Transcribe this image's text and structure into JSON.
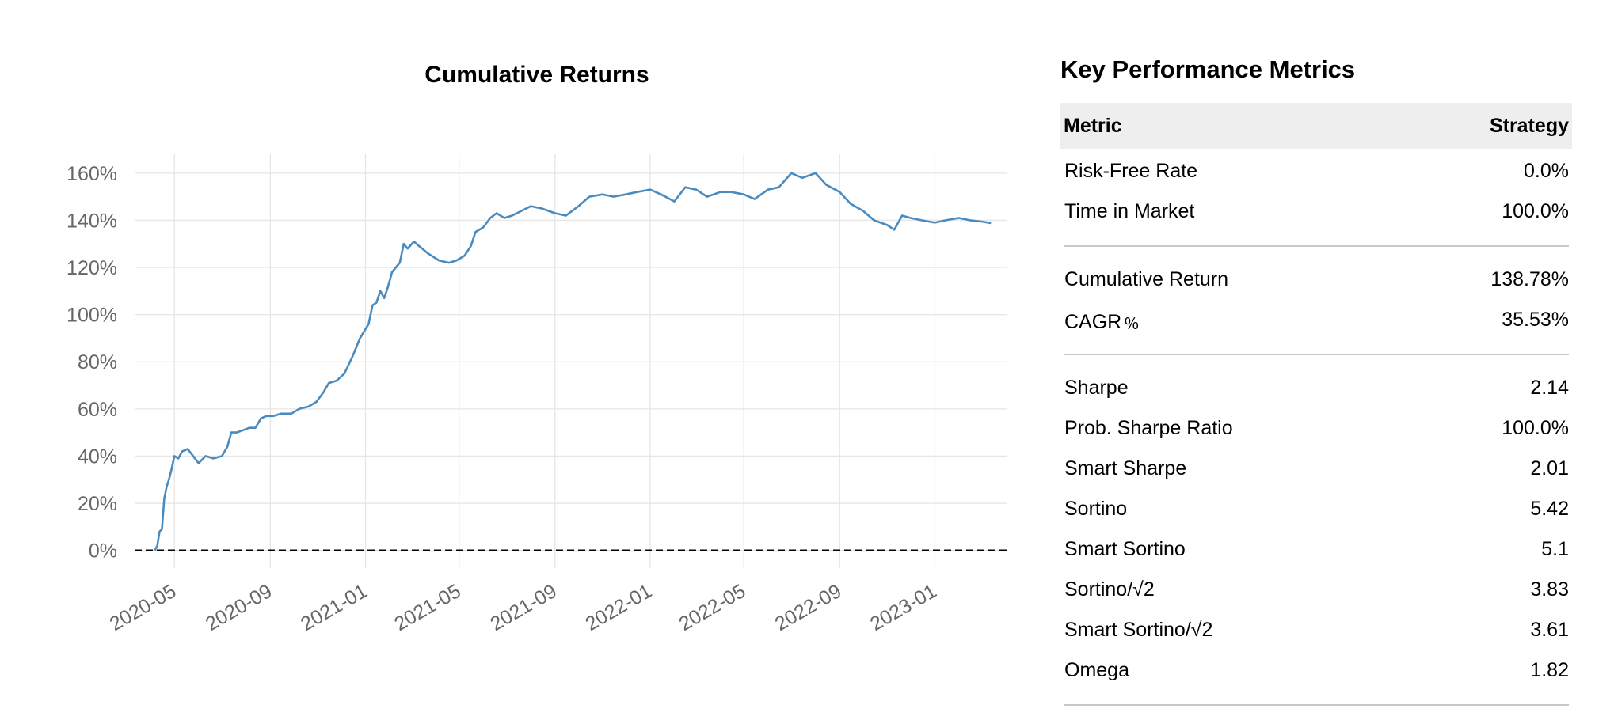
{
  "chart_data": {
    "type": "line",
    "title": "Cumulative Returns",
    "xlabel": "",
    "ylabel": "",
    "x_ticks": [
      "2020-05",
      "2020-09",
      "2021-01",
      "2021-05",
      "2021-09",
      "2022-01",
      "2022-05",
      "2022-09",
      "2023-01"
    ],
    "y_ticks": [
      "0%",
      "20%",
      "40%",
      "60%",
      "80%",
      "100%",
      "120%",
      "140%",
      "160%"
    ],
    "ylim": [
      -7.5,
      168
    ],
    "xlim": [
      "2020-03-11",
      "2023-04-04"
    ],
    "grid": true,
    "baseline": 0,
    "line_color": "#4a8bbf",
    "series": [
      {
        "values": [
          {
            "x": "2020-04-06",
            "y": 0
          },
          {
            "x": "2020-04-09",
            "y": 2
          },
          {
            "x": "2020-04-12",
            "y": 8
          },
          {
            "x": "2020-04-15",
            "y": 9
          },
          {
            "x": "2020-04-18",
            "y": 22
          },
          {
            "x": "2020-04-21",
            "y": 27
          },
          {
            "x": "2020-04-24",
            "y": 30
          },
          {
            "x": "2020-04-27",
            "y": 34
          },
          {
            "x": "2020-05-01",
            "y": 40
          },
          {
            "x": "2020-05-06",
            "y": 39
          },
          {
            "x": "2020-05-11",
            "y": 42
          },
          {
            "x": "2020-05-18",
            "y": 43
          },
          {
            "x": "2020-05-25",
            "y": 40
          },
          {
            "x": "2020-06-01",
            "y": 37
          },
          {
            "x": "2020-06-10",
            "y": 40
          },
          {
            "x": "2020-06-20",
            "y": 39
          },
          {
            "x": "2020-07-01",
            "y": 40
          },
          {
            "x": "2020-07-08",
            "y": 44
          },
          {
            "x": "2020-07-13",
            "y": 50
          },
          {
            "x": "2020-07-20",
            "y": 50
          },
          {
            "x": "2020-07-28",
            "y": 51
          },
          {
            "x": "2020-08-05",
            "y": 52
          },
          {
            "x": "2020-08-13",
            "y": 52
          },
          {
            "x": "2020-08-20",
            "y": 56
          },
          {
            "x": "2020-08-27",
            "y": 57
          },
          {
            "x": "2020-09-05",
            "y": 57
          },
          {
            "x": "2020-09-15",
            "y": 58
          },
          {
            "x": "2020-09-28",
            "y": 58
          },
          {
            "x": "2020-10-08",
            "y": 60
          },
          {
            "x": "2020-10-20",
            "y": 61
          },
          {
            "x": "2020-10-30",
            "y": 63
          },
          {
            "x": "2020-11-08",
            "y": 67
          },
          {
            "x": "2020-11-15",
            "y": 71
          },
          {
            "x": "2020-11-25",
            "y": 72
          },
          {
            "x": "2020-12-05",
            "y": 75
          },
          {
            "x": "2020-12-15",
            "y": 82
          },
          {
            "x": "2020-12-25",
            "y": 90
          },
          {
            "x": "2021-01-05",
            "y": 96
          },
          {
            "x": "2021-01-10",
            "y": 104
          },
          {
            "x": "2021-01-15",
            "y": 105
          },
          {
            "x": "2021-01-20",
            "y": 110
          },
          {
            "x": "2021-01-25",
            "y": 107
          },
          {
            "x": "2021-01-30",
            "y": 112
          },
          {
            "x": "2021-02-04",
            "y": 118
          },
          {
            "x": "2021-02-09",
            "y": 120
          },
          {
            "x": "2021-02-14",
            "y": 122
          },
          {
            "x": "2021-02-19",
            "y": 130
          },
          {
            "x": "2021-02-24",
            "y": 128
          },
          {
            "x": "2021-03-04",
            "y": 131
          },
          {
            "x": "2021-03-11",
            "y": 129
          },
          {
            "x": "2021-03-22",
            "y": 126
          },
          {
            "x": "2021-04-05",
            "y": 123
          },
          {
            "x": "2021-04-18",
            "y": 122
          },
          {
            "x": "2021-04-28",
            "y": 123
          },
          {
            "x": "2021-05-08",
            "y": 125
          },
          {
            "x": "2021-05-16",
            "y": 129
          },
          {
            "x": "2021-05-22",
            "y": 135
          },
          {
            "x": "2021-06-01",
            "y": 137
          },
          {
            "x": "2021-06-10",
            "y": 141
          },
          {
            "x": "2021-06-18",
            "y": 143
          },
          {
            "x": "2021-06-28",
            "y": 141
          },
          {
            "x": "2021-07-08",
            "y": 142
          },
          {
            "x": "2021-07-20",
            "y": 144
          },
          {
            "x": "2021-08-01",
            "y": 146
          },
          {
            "x": "2021-08-15",
            "y": 145
          },
          {
            "x": "2021-09-01",
            "y": 143
          },
          {
            "x": "2021-09-15",
            "y": 142
          },
          {
            "x": "2021-10-01",
            "y": 146
          },
          {
            "x": "2021-10-15",
            "y": 150
          },
          {
            "x": "2021-11-01",
            "y": 151
          },
          {
            "x": "2021-11-15",
            "y": 150
          },
          {
            "x": "2021-12-01",
            "y": 151
          },
          {
            "x": "2021-12-15",
            "y": 152
          },
          {
            "x": "2022-01-01",
            "y": 153
          },
          {
            "x": "2022-01-15",
            "y": 151
          },
          {
            "x": "2022-02-01",
            "y": 148
          },
          {
            "x": "2022-02-15",
            "y": 154
          },
          {
            "x": "2022-03-01",
            "y": 153
          },
          {
            "x": "2022-03-15",
            "y": 150
          },
          {
            "x": "2022-04-01",
            "y": 152
          },
          {
            "x": "2022-04-15",
            "y": 152
          },
          {
            "x": "2022-05-01",
            "y": 151
          },
          {
            "x": "2022-05-15",
            "y": 149
          },
          {
            "x": "2022-06-01",
            "y": 153
          },
          {
            "x": "2022-06-15",
            "y": 154
          },
          {
            "x": "2022-07-01",
            "y": 160
          },
          {
            "x": "2022-07-15",
            "y": 158
          },
          {
            "x": "2022-08-01",
            "y": 160
          },
          {
            "x": "2022-08-15",
            "y": 155
          },
          {
            "x": "2022-09-01",
            "y": 152
          },
          {
            "x": "2022-09-15",
            "y": 147
          },
          {
            "x": "2022-10-01",
            "y": 144
          },
          {
            "x": "2022-10-15",
            "y": 140
          },
          {
            "x": "2022-11-01",
            "y": 138
          },
          {
            "x": "2022-11-10",
            "y": 136
          },
          {
            "x": "2022-11-20",
            "y": 142
          },
          {
            "x": "2022-12-01",
            "y": 141
          },
          {
            "x": "2022-12-15",
            "y": 140
          },
          {
            "x": "2023-01-01",
            "y": 139
          },
          {
            "x": "2023-01-15",
            "y": 140
          },
          {
            "x": "2023-02-01",
            "y": 141
          },
          {
            "x": "2023-02-15",
            "y": 140
          },
          {
            "x": "2023-03-01",
            "y": 139.5
          },
          {
            "x": "2023-03-14",
            "y": 138.8
          }
        ]
      }
    ]
  },
  "metrics": {
    "title": "Key Performance Metrics",
    "header": {
      "metric": "Metric",
      "strategy": "Strategy"
    },
    "rows": [
      {
        "label": "Risk-Free Rate",
        "value": "0.0%"
      },
      {
        "label": "Time in Market",
        "value": "100.0%"
      },
      {
        "label": "Cumulative Return",
        "value": "138.78%"
      },
      {
        "label": "CAGR﹪",
        "value": "35.53%"
      },
      {
        "label": "Sharpe",
        "value": "2.14"
      },
      {
        "label": "Prob. Sharpe Ratio",
        "value": "100.0%"
      },
      {
        "label": "Smart Sharpe",
        "value": "2.01"
      },
      {
        "label": "Sortino",
        "value": "5.42"
      },
      {
        "label": "Smart Sortino",
        "value": "5.1"
      },
      {
        "label": "Sortino/√2",
        "value": "3.83"
      },
      {
        "label": "Smart Sortino/√2",
        "value": "3.61"
      },
      {
        "label": "Omega",
        "value": "1.82"
      }
    ]
  }
}
